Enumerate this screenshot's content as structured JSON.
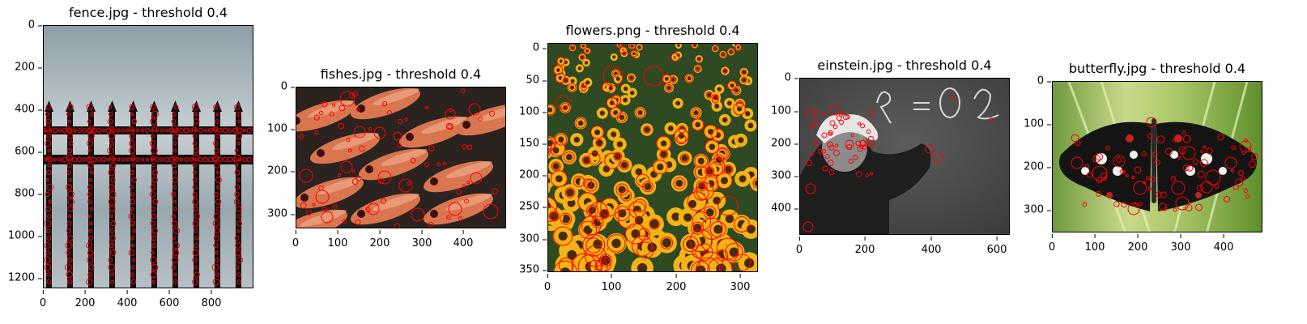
{
  "panels": [
    {
      "title": "fence.jpg - threshold 0.4",
      "image_subject": "iron fence against cloudy sky with blob-detection circles",
      "yticks": [
        "0",
        "200",
        "400",
        "600",
        "800",
        "1000",
        "1200"
      ],
      "xticks": [
        "0",
        "200",
        "400",
        "600",
        "800"
      ]
    },
    {
      "title": "fishes.jpg - threshold 0.4",
      "image_subject": "school of red soldierfish with blob-detection circles",
      "yticks": [
        "0",
        "100",
        "200",
        "300"
      ],
      "xticks": [
        "0",
        "100",
        "200",
        "300",
        "400"
      ]
    },
    {
      "title": "flowers.png - threshold 0.4",
      "image_subject": "field of sunflowers with blob-detection circles",
      "yticks": [
        "0",
        "50",
        "100",
        "150",
        "200",
        "250",
        "300",
        "350"
      ],
      "xticks": [
        "0",
        "100",
        "200",
        "300"
      ]
    },
    {
      "title": "einstein.jpg - threshold 0.4",
      "image_subject": "black and white photo of man writing on chalkboard with blob-detection circles",
      "yticks": [
        "0",
        "100",
        "200",
        "300",
        "400"
      ],
      "xticks": [
        "0",
        "200",
        "400",
        "600"
      ]
    },
    {
      "title": "butterfly.jpg - threshold 0.4",
      "image_subject": "black, white and red butterfly on green leaf with blob-detection circles",
      "yticks": [
        "0",
        "100",
        "200",
        "300"
      ],
      "xticks": [
        "0",
        "100",
        "200",
        "300",
        "400"
      ]
    }
  ],
  "colors": {
    "circle": "#ff0000",
    "axis": "#000000"
  }
}
